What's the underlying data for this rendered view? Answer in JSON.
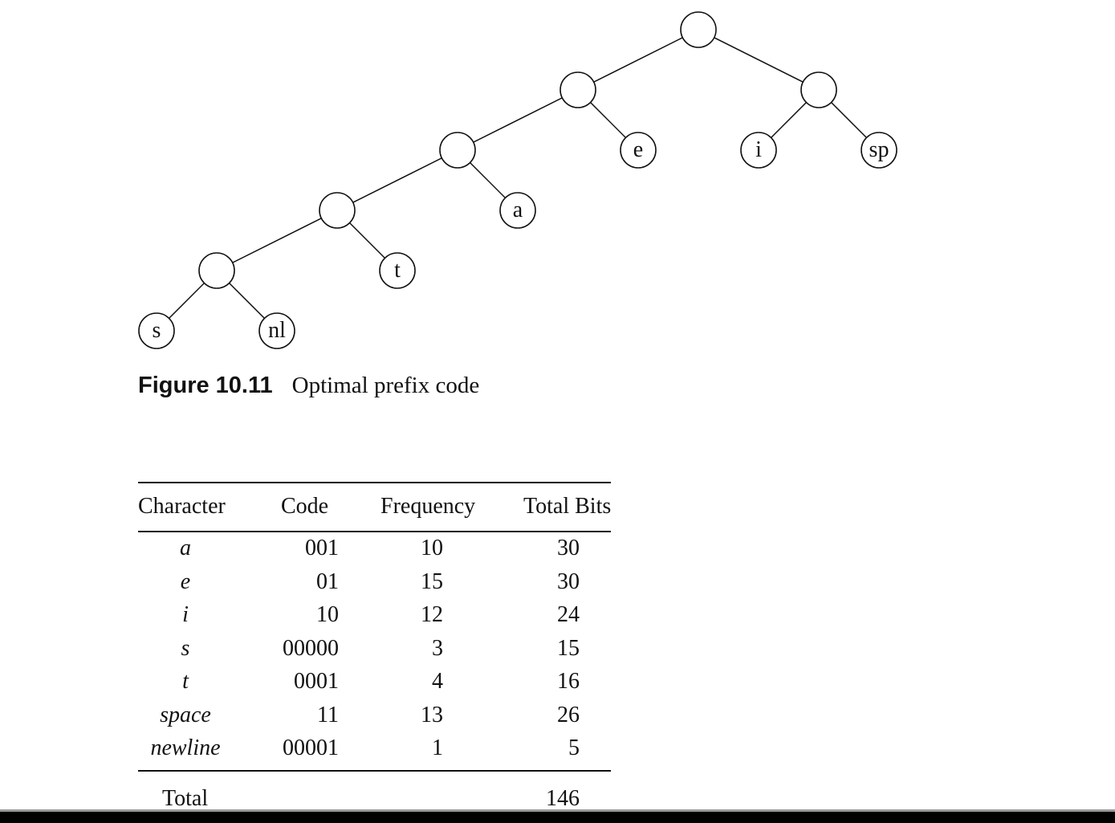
{
  "tree": {
    "internal_nodes": [
      "root",
      "n-left",
      "n-e-parent",
      "n-a-parent",
      "n-t-parent",
      "n-s-parent"
    ],
    "leaves": [
      {
        "id": "e",
        "label": "e"
      },
      {
        "id": "i",
        "label": "i"
      },
      {
        "id": "sp",
        "label": "sp"
      },
      {
        "id": "a",
        "label": "a"
      },
      {
        "id": "t",
        "label": "t"
      },
      {
        "id": "s",
        "label": "s"
      },
      {
        "id": "nl",
        "label": "nl"
      }
    ]
  },
  "caption": {
    "label": "Figure 10.11",
    "text": "Optimal prefix code"
  },
  "table": {
    "headers": {
      "character": "Character",
      "code": "Code",
      "frequency": "Frequency",
      "total_bits": "Total Bits"
    },
    "rows": [
      {
        "character": "a",
        "code": "001",
        "frequency": "10",
        "total_bits": "30"
      },
      {
        "character": "e",
        "code": "01",
        "frequency": "15",
        "total_bits": "30"
      },
      {
        "character": "i",
        "code": "10",
        "frequency": "12",
        "total_bits": "24"
      },
      {
        "character": "s",
        "code": "00000",
        "frequency": "3",
        "total_bits": "15"
      },
      {
        "character": "t",
        "code": "0001",
        "frequency": "4",
        "total_bits": "16"
      },
      {
        "character": "space",
        "code": "11",
        "frequency": "13",
        "total_bits": "26"
      },
      {
        "character": "newline",
        "code": "00001",
        "frequency": "1",
        "total_bits": "5"
      }
    ],
    "total_label": "Total",
    "total_value": "146"
  }
}
